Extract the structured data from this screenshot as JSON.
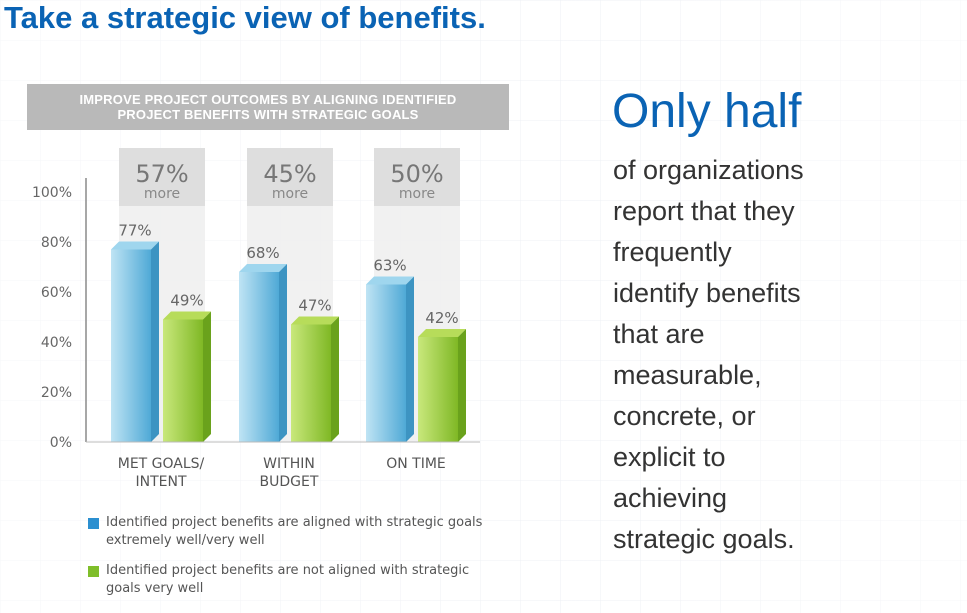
{
  "slide": {
    "title": "Take a strategic view of benefits."
  },
  "chart_header": {
    "line1": "IMPROVE PROJECT OUTCOMES BY ALIGNING IDENTIFIED",
    "line2": "PROJECT BENEFITS WITH STRATEGIC GOALS"
  },
  "side_text": {
    "heading": "Only half",
    "lines": [
      "of organizations",
      "report that they",
      "frequently",
      "identify benefits",
      "that are",
      "measurable,",
      "concrete, or",
      "explicit to",
      "achieving",
      "strategic goals."
    ]
  },
  "chart_data": {
    "type": "bar",
    "title": "IMPROVE PROJECT OUTCOMES BY ALIGNING IDENTIFIED PROJECT BENEFITS WITH STRATEGIC GOALS",
    "categories": [
      [
        "MET GOALS/",
        "INTENT"
      ],
      [
        "WITHIN",
        "BUDGET"
      ],
      [
        "ON TIME"
      ]
    ],
    "series": [
      {
        "name": "Identified project benefits are aligned with strategic goals extremely well/very well",
        "legend_lines": [
          "Identified project benefits are aligned with strategic goals",
          "extremely well/very well"
        ],
        "values": [
          77,
          68,
          63
        ],
        "labels": [
          "77%",
          "68%",
          "63%"
        ],
        "color": "#6fc0e3"
      },
      {
        "name": "Identified project benefits are not aligned with strategic goals very well",
        "legend_lines": [
          "Identified project benefits are not aligned with strategic",
          "goals very well"
        ],
        "values": [
          49,
          47,
          42
        ],
        "labels": [
          "49%",
          "47%",
          "42%"
        ],
        "color": "#9ecf38"
      }
    ],
    "differences": [
      {
        "value": "57%",
        "note": "more"
      },
      {
        "value": "45%",
        "note": "more"
      },
      {
        "value": "50%",
        "note": "more"
      }
    ],
    "yticks": [
      "100%",
      "80%",
      "60%",
      "40%",
      "20%",
      "0%"
    ],
    "ylim": [
      0,
      100
    ],
    "grid": false,
    "legend_position": "bottom"
  },
  "colors": {
    "title_blue": "#0a63b4",
    "header_gray": "#b9b9b9",
    "legend_blue": "#2b8fd0",
    "legend_green": "#7fbe2a"
  }
}
